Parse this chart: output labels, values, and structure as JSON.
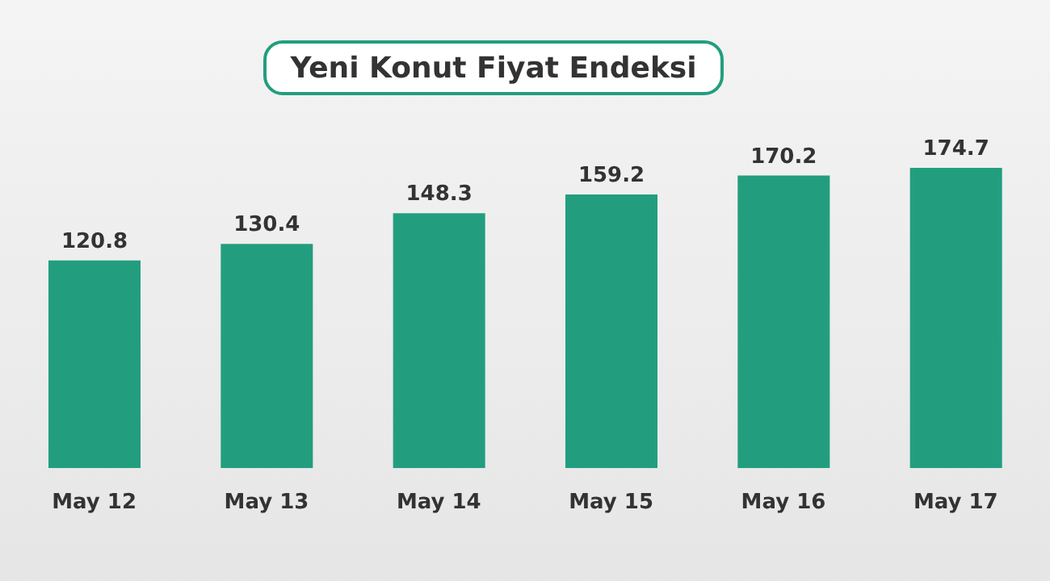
{
  "chart_data": {
    "type": "bar",
    "title": "Yeni Konut Fiyat Endeksi",
    "categories": [
      "May 12",
      "May 13",
      "May 14",
      "May 15",
      "May 16",
      "May 17"
    ],
    "values": [
      120.8,
      130.4,
      148.3,
      159.2,
      170.2,
      174.7
    ],
    "color": "#229e7f",
    "data_labels": true,
    "tick_labels": "x"
  }
}
